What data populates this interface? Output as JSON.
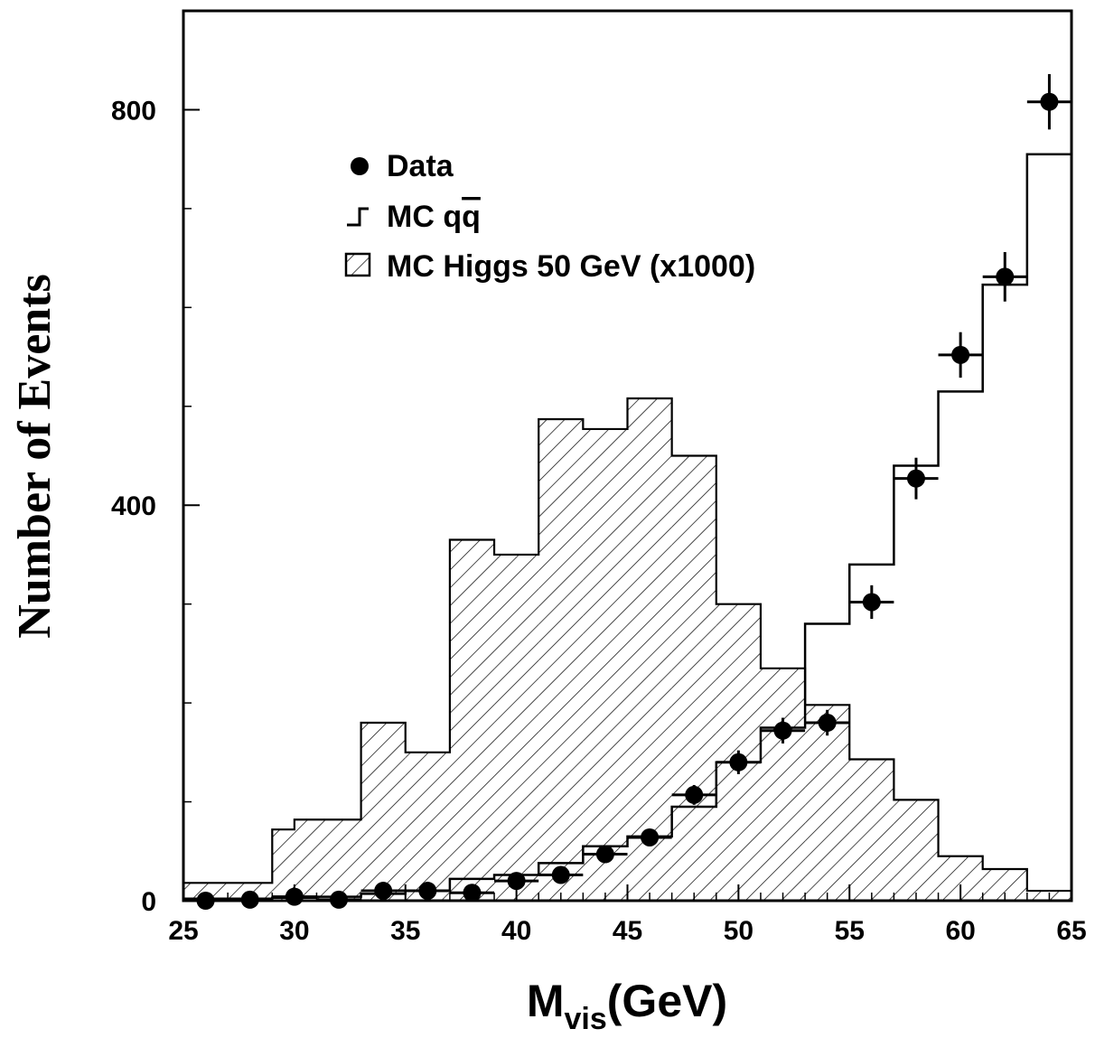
{
  "chart_data": {
    "type": "histogram",
    "xlabel": {
      "main": "M",
      "sub": "vis",
      "unit": "(GeV)"
    },
    "ylabel": "Number of Events",
    "xlim": [
      25,
      65
    ],
    "ylim": [
      0,
      900
    ],
    "x_ticks": [
      25,
      30,
      35,
      40,
      45,
      50,
      55,
      60,
      65
    ],
    "y_ticks": [
      0,
      400,
      800
    ],
    "legend": {
      "position": "upper-left",
      "items": [
        {
          "key": "data",
          "symbol": "filled-circle",
          "label": "Data"
        },
        {
          "key": "mc_qq",
          "symbol": "step-line",
          "label": "MC q",
          "label_overbar": "q"
        },
        {
          "key": "mc_higgs",
          "symbol": "hatched-box",
          "label": "MC Higgs 50 GeV (x1000)"
        }
      ]
    },
    "series": [
      {
        "name": "MC Higgs 50 GeV (x1000)",
        "kind": "hatched-histogram",
        "bin_edges": [
          25,
          29,
          30,
          33,
          35,
          37,
          39,
          41,
          43,
          45,
          47,
          49,
          51,
          53,
          55,
          57,
          59,
          61,
          63,
          65
        ],
        "values": [
          18,
          72,
          82,
          180,
          150,
          365,
          350,
          487,
          477,
          508,
          450,
          300,
          235,
          198,
          143,
          102,
          45,
          32,
          10
        ]
      },
      {
        "name": "MC qq̄",
        "kind": "step-line",
        "bin_edges": [
          25,
          29,
          31,
          33,
          35,
          37,
          39,
          41,
          43,
          45,
          47,
          49,
          51,
          53,
          55,
          57,
          59,
          61,
          63,
          65
        ],
        "values": [
          2,
          3,
          4,
          7,
          10,
          22,
          26,
          38,
          55,
          65,
          95,
          140,
          175,
          280,
          340,
          440,
          515,
          623,
          755
        ]
      },
      {
        "name": "Data",
        "kind": "points-with-errors",
        "x": [
          26,
          28,
          30,
          32,
          34,
          36,
          38,
          40,
          42,
          44,
          46,
          48,
          50,
          52,
          54,
          56,
          58,
          60,
          62,
          64
        ],
        "y": [
          0,
          1,
          4,
          1,
          10,
          10,
          8,
          20,
          26,
          47,
          64,
          107,
          140,
          172,
          180,
          302,
          427,
          552,
          631,
          808
        ],
        "yerr": [
          0,
          1,
          2,
          1,
          3,
          3,
          3,
          4,
          5,
          7,
          8,
          10,
          12,
          13,
          13,
          17,
          21,
          23,
          25,
          28
        ],
        "xerr": [
          1,
          1,
          1,
          1,
          1,
          1,
          1,
          1,
          1,
          1,
          1,
          1,
          1,
          1,
          1,
          1,
          1,
          1,
          1,
          1
        ]
      }
    ]
  }
}
